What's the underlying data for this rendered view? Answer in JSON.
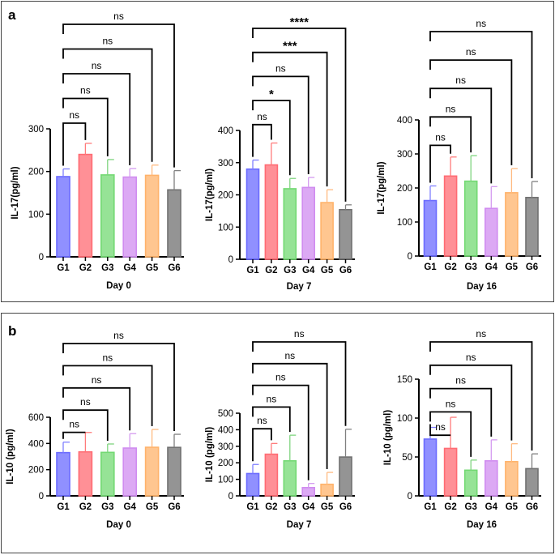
{
  "panels": [
    {
      "letter": "a",
      "chart_indices": [
        0,
        1,
        2
      ]
    },
    {
      "letter": "b",
      "chart_indices": [
        3,
        4,
        5
      ]
    }
  ],
  "colors": {
    "G1": "#6b6bff",
    "G2": "#ff6b73",
    "G3": "#73d973",
    "G4": "#d08cf0",
    "G5": "#ffb36b",
    "G6": "#707070"
  },
  "error_colors": {
    "G1": "#8080ff",
    "G2": "#ff7a7a",
    "G3": "#7fd47f",
    "G4": "#d49af0",
    "G5": "#ffba80",
    "G6": "#808080"
  },
  "chart_data": [
    {
      "type": "bar",
      "title": "",
      "xlabel": "Day 0",
      "ylabel": "IL-17(pg/ml)",
      "categories": [
        "G1",
        "G2",
        "G3",
        "G4",
        "G5",
        "G6"
      ],
      "values": [
        188,
        240,
        192,
        187,
        191,
        157
      ],
      "errors": [
        18,
        26,
        36,
        20,
        24,
        45
      ],
      "ylim": [
        0,
        300
      ],
      "yticks": [
        0,
        100,
        200,
        300
      ],
      "grid": false,
      "brackets": [
        {
          "from": "G1",
          "to": "G2",
          "label": "ns"
        },
        {
          "from": "G1",
          "to": "G3",
          "label": "ns"
        },
        {
          "from": "G1",
          "to": "G4",
          "label": "ns"
        },
        {
          "from": "G1",
          "to": "G5",
          "label": "ns"
        },
        {
          "from": "G1",
          "to": "G6",
          "label": "ns"
        }
      ]
    },
    {
      "type": "bar",
      "title": "",
      "xlabel": "Day 7",
      "ylabel": "IL-17(pg/ml)",
      "categories": [
        "G1",
        "G2",
        "G3",
        "G4",
        "G5",
        "G6"
      ],
      "values": [
        280,
        293,
        219,
        223,
        176,
        154
      ],
      "errors": [
        28,
        68,
        32,
        31,
        40,
        15
      ],
      "ylim": [
        0,
        400
      ],
      "yticks": [
        0,
        100,
        200,
        300,
        400
      ],
      "grid": false,
      "brackets": [
        {
          "from": "G1",
          "to": "G2",
          "label": "ns"
        },
        {
          "from": "G1",
          "to": "G3",
          "label": "*"
        },
        {
          "from": "G1",
          "to": "G4",
          "label": "ns"
        },
        {
          "from": "G1",
          "to": "G5",
          "label": "***"
        },
        {
          "from": "G1",
          "to": "G6",
          "label": "****"
        }
      ]
    },
    {
      "type": "bar",
      "title": "",
      "xlabel": "Day 16",
      "ylabel": "IL-17(pg/ml)",
      "categories": [
        "G1",
        "G2",
        "G3",
        "G4",
        "G5",
        "G6"
      ],
      "values": [
        163,
        235,
        220,
        140,
        186,
        172
      ],
      "errors": [
        43,
        56,
        75,
        64,
        71,
        47
      ],
      "ylim": [
        0,
        400
      ],
      "yticks": [
        0,
        100,
        200,
        300,
        400
      ],
      "grid": false,
      "brackets": [
        {
          "from": "G1",
          "to": "G2",
          "label": "ns"
        },
        {
          "from": "G1",
          "to": "G3",
          "label": "ns"
        },
        {
          "from": "G1",
          "to": "G4",
          "label": "ns"
        },
        {
          "from": "G1",
          "to": "G5",
          "label": "ns"
        },
        {
          "from": "G1",
          "to": "G6",
          "label": "ns"
        }
      ]
    },
    {
      "type": "bar",
      "title": "",
      "xlabel": "Day 0",
      "ylabel": "IL-10 (pg/ml)",
      "categories": [
        "G1",
        "G2",
        "G3",
        "G4",
        "G5",
        "G6"
      ],
      "values": [
        330,
        336,
        332,
        365,
        371,
        370
      ],
      "errors": [
        80,
        148,
        64,
        110,
        136,
        100
      ],
      "ylim": [
        0,
        600
      ],
      "yticks": [
        0,
        200,
        400,
        600
      ],
      "grid": false,
      "brackets": [
        {
          "from": "G1",
          "to": "G2",
          "label": "ns"
        },
        {
          "from": "G1",
          "to": "G3",
          "label": "ns"
        },
        {
          "from": "G1",
          "to": "G4",
          "label": "ns"
        },
        {
          "from": "G1",
          "to": "G5",
          "label": "ns"
        },
        {
          "from": "G1",
          "to": "G6",
          "label": "ns"
        }
      ]
    },
    {
      "type": "bar",
      "title": "",
      "xlabel": "Day 7",
      "ylabel": "IL-10 (pg/ml)",
      "categories": [
        "G1",
        "G2",
        "G3",
        "G4",
        "G5",
        "G6"
      ],
      "values": [
        135,
        252,
        212,
        50,
        70,
        235
      ],
      "errors": [
        55,
        65,
        155,
        25,
        72,
        168
      ],
      "ylim": [
        0,
        500
      ],
      "yticks": [
        0,
        100,
        200,
        300,
        400,
        500
      ],
      "grid": false,
      "brackets": [
        {
          "from": "G1",
          "to": "G2",
          "label": "ns"
        },
        {
          "from": "G1",
          "to": "G3",
          "label": "ns"
        },
        {
          "from": "G1",
          "to": "G4",
          "label": "ns"
        },
        {
          "from": "G1",
          "to": "G5",
          "label": "ns"
        },
        {
          "from": "G1",
          "to": "G6",
          "label": "ns"
        }
      ]
    },
    {
      "type": "bar",
      "title": "",
      "xlabel": "Day 16",
      "ylabel": "IL-10 (pg/ml)",
      "categories": [
        "G1",
        "G2",
        "G3",
        "G4",
        "G5",
        "G6"
      ],
      "values": [
        73,
        61,
        33,
        45,
        44,
        35
      ],
      "errors": [
        15,
        40,
        13,
        27,
        23,
        19
      ],
      "ylim": [
        0,
        150
      ],
      "yticks": [
        0,
        50,
        100,
        150
      ],
      "grid": false,
      "brackets": [
        {
          "from": "G1",
          "to": "G2",
          "label": "ns"
        },
        {
          "from": "G1",
          "to": "G3",
          "label": "ns"
        },
        {
          "from": "G1",
          "to": "G4",
          "label": "ns"
        },
        {
          "from": "G1",
          "to": "G5",
          "label": "ns"
        },
        {
          "from": "G1",
          "to": "G6",
          "label": "ns"
        }
      ]
    }
  ]
}
